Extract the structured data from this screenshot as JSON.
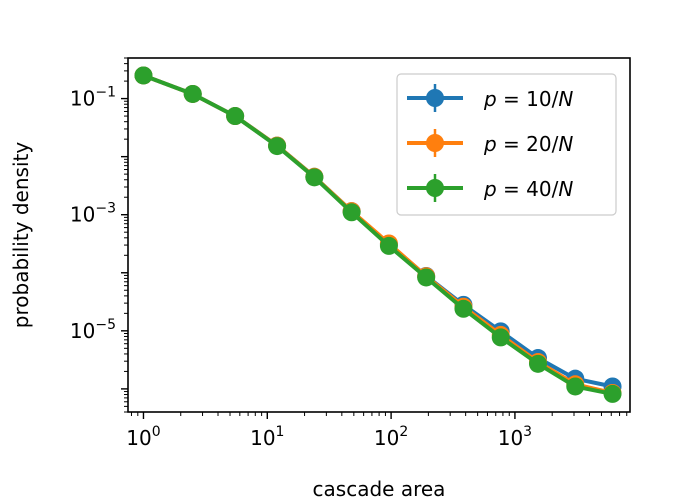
{
  "chart_data": {
    "type": "line",
    "title": "",
    "xlabel": "cascade area",
    "ylabel": "probability density",
    "xscale": "log",
    "yscale": "log",
    "xlim": [
      0.75,
      8500
    ],
    "ylim": [
      4e-07,
      0.5
    ],
    "x": [
      1,
      2.5,
      5.5,
      12,
      24,
      48,
      96,
      192,
      384,
      768,
      1536,
      3072,
      6144
    ],
    "x_ticks": [
      {
        "value": 1,
        "base": "10",
        "exp": "0"
      },
      {
        "value": 10,
        "base": "10",
        "exp": "1"
      },
      {
        "value": 100,
        "base": "10",
        "exp": "2"
      },
      {
        "value": 1000,
        "base": "10",
        "exp": "3"
      }
    ],
    "y_ticks": [
      {
        "value": 0.1,
        "base": "10",
        "exp": "−1"
      },
      {
        "value": 0.001,
        "base": "10",
        "exp": "−3"
      },
      {
        "value": 1e-05,
        "base": "10",
        "exp": "−5"
      }
    ],
    "legend_position": "top-right",
    "series": [
      {
        "name": "p = 10/N",
        "name_parts": [
          "p",
          " = 10/",
          "N"
        ],
        "color": "#1f77b4",
        "values": [
          0.25,
          0.12,
          0.05,
          0.0155,
          0.0045,
          0.00115,
          0.00031,
          8.8e-05,
          2.8e-05,
          9.8e-06,
          3.4e-06,
          1.5e-06,
          1.1e-06
        ]
      },
      {
        "name": "p = 20/N",
        "name_parts": [
          "p",
          " = 20/",
          "N"
        ],
        "color": "#ff7f0e",
        "values": [
          0.25,
          0.12,
          0.05,
          0.0155,
          0.0045,
          0.00115,
          0.00032,
          8.7e-05,
          2.6e-05,
          8.5e-06,
          2.9e-06,
          1.2e-06,
          8.5e-07
        ]
      },
      {
        "name": "p = 40/N",
        "name_parts": [
          "p",
          " = 40/",
          "N"
        ],
        "color": "#2ca02c",
        "values": [
          0.25,
          0.12,
          0.05,
          0.0152,
          0.0044,
          0.0011,
          0.00029,
          8.3e-05,
          2.4e-05,
          7.7e-06,
          2.7e-06,
          1.1e-06,
          8.2e-07
        ]
      }
    ]
  }
}
